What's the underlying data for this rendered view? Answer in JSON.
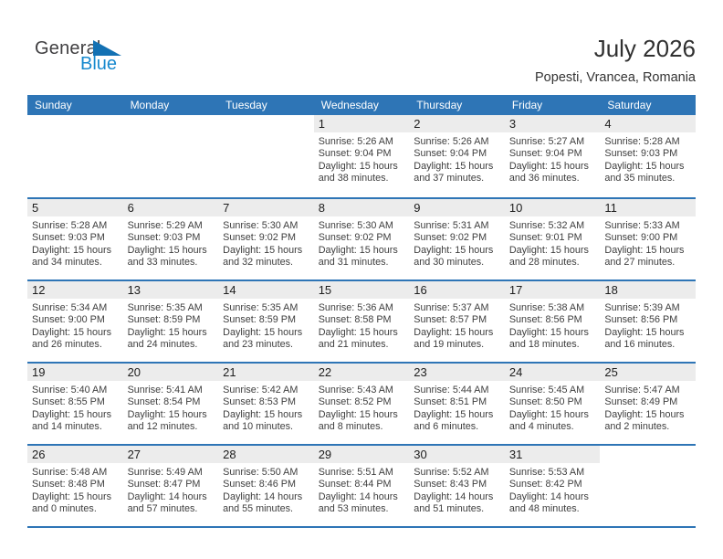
{
  "logo": {
    "general": "General",
    "blue": "Blue"
  },
  "header": {
    "title": "July 2026",
    "subtitle": "Popesti, Vrancea, Romania"
  },
  "weekdays": [
    "Sunday",
    "Monday",
    "Tuesday",
    "Wednesday",
    "Thursday",
    "Friday",
    "Saturday"
  ],
  "weeks": [
    [
      null,
      null,
      null,
      1,
      2,
      3,
      4
    ],
    [
      5,
      6,
      7,
      8,
      9,
      10,
      11
    ],
    [
      12,
      13,
      14,
      15,
      16,
      17,
      18
    ],
    [
      19,
      20,
      21,
      22,
      23,
      24,
      25
    ],
    [
      26,
      27,
      28,
      29,
      30,
      31,
      null
    ]
  ],
  "days": [
    {
      "day": 1,
      "sunrise": "Sunrise: 5:26 AM",
      "sunset": "Sunset: 9:04 PM",
      "daylight": [
        "Daylight: 15 hours",
        "and 38 minutes."
      ]
    },
    {
      "day": 2,
      "sunrise": "Sunrise: 5:26 AM",
      "sunset": "Sunset: 9:04 PM",
      "daylight": [
        "Daylight: 15 hours",
        "and 37 minutes."
      ]
    },
    {
      "day": 3,
      "sunrise": "Sunrise: 5:27 AM",
      "sunset": "Sunset: 9:04 PM",
      "daylight": [
        "Daylight: 15 hours",
        "and 36 minutes."
      ]
    },
    {
      "day": 4,
      "sunrise": "Sunrise: 5:28 AM",
      "sunset": "Sunset: 9:03 PM",
      "daylight": [
        "Daylight: 15 hours",
        "and 35 minutes."
      ]
    },
    {
      "day": 5,
      "sunrise": "Sunrise: 5:28 AM",
      "sunset": "Sunset: 9:03 PM",
      "daylight": [
        "Daylight: 15 hours",
        "and 34 minutes."
      ]
    },
    {
      "day": 6,
      "sunrise": "Sunrise: 5:29 AM",
      "sunset": "Sunset: 9:03 PM",
      "daylight": [
        "Daylight: 15 hours",
        "and 33 minutes."
      ]
    },
    {
      "day": 7,
      "sunrise": "Sunrise: 5:30 AM",
      "sunset": "Sunset: 9:02 PM",
      "daylight": [
        "Daylight: 15 hours",
        "and 32 minutes."
      ]
    },
    {
      "day": 8,
      "sunrise": "Sunrise: 5:30 AM",
      "sunset": "Sunset: 9:02 PM",
      "daylight": [
        "Daylight: 15 hours",
        "and 31 minutes."
      ]
    },
    {
      "day": 9,
      "sunrise": "Sunrise: 5:31 AM",
      "sunset": "Sunset: 9:02 PM",
      "daylight": [
        "Daylight: 15 hours",
        "and 30 minutes."
      ]
    },
    {
      "day": 10,
      "sunrise": "Sunrise: 5:32 AM",
      "sunset": "Sunset: 9:01 PM",
      "daylight": [
        "Daylight: 15 hours",
        "and 28 minutes."
      ]
    },
    {
      "day": 11,
      "sunrise": "Sunrise: 5:33 AM",
      "sunset": "Sunset: 9:00 PM",
      "daylight": [
        "Daylight: 15 hours",
        "and 27 minutes."
      ]
    },
    {
      "day": 12,
      "sunrise": "Sunrise: 5:34 AM",
      "sunset": "Sunset: 9:00 PM",
      "daylight": [
        "Daylight: 15 hours",
        "and 26 minutes."
      ]
    },
    {
      "day": 13,
      "sunrise": "Sunrise: 5:35 AM",
      "sunset": "Sunset: 8:59 PM",
      "daylight": [
        "Daylight: 15 hours",
        "and 24 minutes."
      ]
    },
    {
      "day": 14,
      "sunrise": "Sunrise: 5:35 AM",
      "sunset": "Sunset: 8:59 PM",
      "daylight": [
        "Daylight: 15 hours",
        "and 23 minutes."
      ]
    },
    {
      "day": 15,
      "sunrise": "Sunrise: 5:36 AM",
      "sunset": "Sunset: 8:58 PM",
      "daylight": [
        "Daylight: 15 hours",
        "and 21 minutes."
      ]
    },
    {
      "day": 16,
      "sunrise": "Sunrise: 5:37 AM",
      "sunset": "Sunset: 8:57 PM",
      "daylight": [
        "Daylight: 15 hours",
        "and 19 minutes."
      ]
    },
    {
      "day": 17,
      "sunrise": "Sunrise: 5:38 AM",
      "sunset": "Sunset: 8:56 PM",
      "daylight": [
        "Daylight: 15 hours",
        "and 18 minutes."
      ]
    },
    {
      "day": 18,
      "sunrise": "Sunrise: 5:39 AM",
      "sunset": "Sunset: 8:56 PM",
      "daylight": [
        "Daylight: 15 hours",
        "and 16 minutes."
      ]
    },
    {
      "day": 19,
      "sunrise": "Sunrise: 5:40 AM",
      "sunset": "Sunset: 8:55 PM",
      "daylight": [
        "Daylight: 15 hours",
        "and 14 minutes."
      ]
    },
    {
      "day": 20,
      "sunrise": "Sunrise: 5:41 AM",
      "sunset": "Sunset: 8:54 PM",
      "daylight": [
        "Daylight: 15 hours",
        "and 12 minutes."
      ]
    },
    {
      "day": 21,
      "sunrise": "Sunrise: 5:42 AM",
      "sunset": "Sunset: 8:53 PM",
      "daylight": [
        "Daylight: 15 hours",
        "and 10 minutes."
      ]
    },
    {
      "day": 22,
      "sunrise": "Sunrise: 5:43 AM",
      "sunset": "Sunset: 8:52 PM",
      "daylight": [
        "Daylight: 15 hours",
        "and 8 minutes."
      ]
    },
    {
      "day": 23,
      "sunrise": "Sunrise: 5:44 AM",
      "sunset": "Sunset: 8:51 PM",
      "daylight": [
        "Daylight: 15 hours",
        "and 6 minutes."
      ]
    },
    {
      "day": 24,
      "sunrise": "Sunrise: 5:45 AM",
      "sunset": "Sunset: 8:50 PM",
      "daylight": [
        "Daylight: 15 hours",
        "and 4 minutes."
      ]
    },
    {
      "day": 25,
      "sunrise": "Sunrise: 5:47 AM",
      "sunset": "Sunset: 8:49 PM",
      "daylight": [
        "Daylight: 15 hours",
        "and 2 minutes."
      ]
    },
    {
      "day": 26,
      "sunrise": "Sunrise: 5:48 AM",
      "sunset": "Sunset: 8:48 PM",
      "daylight": [
        "Daylight: 15 hours",
        "and 0 minutes."
      ]
    },
    {
      "day": 27,
      "sunrise": "Sunrise: 5:49 AM",
      "sunset": "Sunset: 8:47 PM",
      "daylight": [
        "Daylight: 14 hours",
        "and 57 minutes."
      ]
    },
    {
      "day": 28,
      "sunrise": "Sunrise: 5:50 AM",
      "sunset": "Sunset: 8:46 PM",
      "daylight": [
        "Daylight: 14 hours",
        "and 55 minutes."
      ]
    },
    {
      "day": 29,
      "sunrise": "Sunrise: 5:51 AM",
      "sunset": "Sunset: 8:44 PM",
      "daylight": [
        "Daylight: 14 hours",
        "and 53 minutes."
      ]
    },
    {
      "day": 30,
      "sunrise": "Sunrise: 5:52 AM",
      "sunset": "Sunset: 8:43 PM",
      "daylight": [
        "Daylight: 14 hours",
        "and 51 minutes."
      ]
    },
    {
      "day": 31,
      "sunrise": "Sunrise: 5:53 AM",
      "sunset": "Sunset: 8:42 PM",
      "daylight": [
        "Daylight: 14 hours",
        "and 48 minutes."
      ]
    }
  ],
  "colors": {
    "header_bg": "#2E75B6",
    "week_border": "#2E75B6",
    "number_band": "#ECECEC",
    "cell_text": "#3E3E3E",
    "logo_blue": "#1789CE",
    "logo_triangle": "#1371B3"
  }
}
